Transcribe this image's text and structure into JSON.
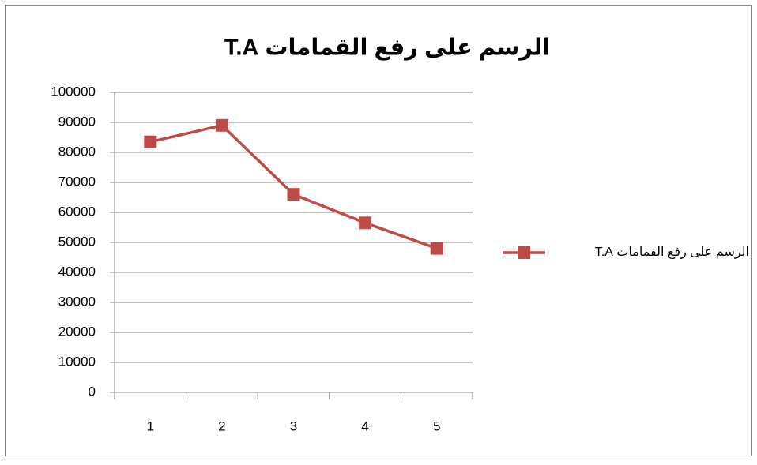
{
  "chart_data": {
    "type": "line",
    "title": "الرسم على رفع القمامات  T.A",
    "categories": [
      1,
      2,
      3,
      4,
      5
    ],
    "series": [
      {
        "name": "الرسم على رفع القمامات  T.A",
        "color": "#be4b48",
        "values": [
          83500,
          89000,
          66000,
          56500,
          48000
        ]
      }
    ],
    "ylim": [
      0,
      100000
    ],
    "yticks": [
      0,
      10000,
      20000,
      30000,
      40000,
      50000,
      60000,
      70000,
      80000,
      90000,
      100000
    ],
    "grid": true,
    "legend": "right"
  }
}
